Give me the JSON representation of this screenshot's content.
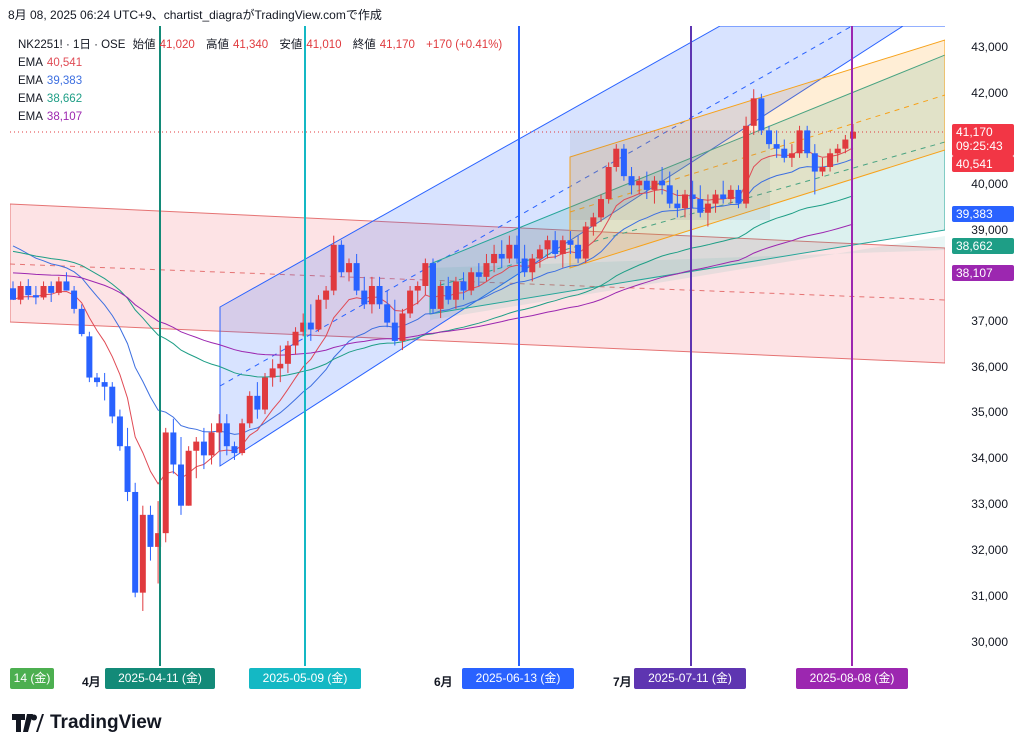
{
  "header": {
    "caption": "8月 08, 2025 06:24 UTC+9、chartist_diagraがTradingView.comで作成",
    "symbol": "NK2251! · 1日 · OSE",
    "open_label": "始値",
    "open_value": "41,020",
    "high_label": "高値",
    "high_value": "41,340",
    "low_label": "安値",
    "low_value": "41,010",
    "close_label": "終値",
    "close_value": "41,170",
    "change": "+170 (+0.41%)"
  },
  "legend": [
    {
      "label": "EMA",
      "value": "40,541",
      "color": "#e04b55"
    },
    {
      "label": "EMA",
      "value": "39,383",
      "color": "#3d6fe0"
    },
    {
      "label": "EMA",
      "value": "38,662",
      "color": "#1e9e86"
    },
    {
      "label": "EMA",
      "value": "38,107",
      "color": "#9c27b0"
    }
  ],
  "price_tags": {
    "last_price": "41,170",
    "countdown": "09:25:43",
    "ema1": "40,541",
    "ema2": "39,383",
    "ema3": "38,662",
    "ema4": "38,107"
  },
  "axis": {
    "y_ticks": [
      "43,000",
      "42,000",
      "40,000",
      "39,000",
      "37,000",
      "36,000",
      "35,000",
      "34,000",
      "33,000",
      "32,000",
      "31,000",
      "30,000"
    ],
    "month_labels": [
      "4月",
      "6月",
      "7月"
    ],
    "date_tags": [
      {
        "label": "14 (金)",
        "color": "#4caf50"
      },
      {
        "label": "2025-04-11 (金)",
        "color": "#138a78"
      },
      {
        "label": "2025-05-09 (金)",
        "color": "#14b8c4"
      },
      {
        "label": "2025-06-13 (金)",
        "color": "#2962ff"
      },
      {
        "label": "2025-07-11 (金)",
        "color": "#5e35b1"
      },
      {
        "label": "2025-08-08 (金)",
        "color": "#9c27b0"
      }
    ]
  },
  "footer": {
    "brand": "TradingView"
  },
  "chart_data": {
    "type": "candlestick",
    "symbol": "NK2251!",
    "interval": "1日",
    "exchange": "OSE",
    "ylim": [
      29300,
      43300
    ],
    "grid": false,
    "up_color": "#e03a3e",
    "down_color": "#2962ff",
    "candles": [
      [
        37750,
        37900,
        37500,
        37500
      ],
      [
        37500,
        37900,
        37400,
        37800
      ],
      [
        37800,
        37950,
        37500,
        37600
      ],
      [
        37600,
        37800,
        37400,
        37550
      ],
      [
        37550,
        37900,
        37500,
        37800
      ],
      [
        37800,
        37900,
        37450,
        37650
      ],
      [
        37650,
        38000,
        37600,
        37900
      ],
      [
        37900,
        38100,
        37700,
        37700
      ],
      [
        37700,
        37800,
        37200,
        37300
      ],
      [
        37300,
        37400,
        36700,
        36750
      ],
      [
        36700,
        36800,
        35700,
        35800
      ],
      [
        35800,
        35900,
        35600,
        35700
      ],
      [
        35700,
        35900,
        35300,
        35600
      ],
      [
        35600,
        35700,
        34800,
        34950
      ],
      [
        34950,
        35100,
        34200,
        34300
      ],
      [
        34300,
        34700,
        33100,
        33300
      ],
      [
        33300,
        33500,
        31000,
        31100
      ],
      [
        31100,
        33000,
        30700,
        32800
      ],
      [
        32800,
        33000,
        31800,
        32100
      ],
      [
        32100,
        33100,
        31300,
        32400
      ],
      [
        32400,
        34700,
        32200,
        34600
      ],
      [
        34600,
        34900,
        33700,
        33900
      ],
      [
        33900,
        34500,
        32800,
        33000
      ],
      [
        33000,
        34300,
        33000,
        34200
      ],
      [
        34200,
        34500,
        33600,
        34400
      ],
      [
        34400,
        34700,
        33800,
        34100
      ],
      [
        34100,
        34800,
        33900,
        34600
      ],
      [
        34600,
        35000,
        34200,
        34800
      ],
      [
        34800,
        35000,
        34100,
        34300
      ],
      [
        34300,
        34400,
        34000,
        34150
      ],
      [
        34150,
        34900,
        34100,
        34800
      ],
      [
        34800,
        35500,
        34700,
        35400
      ],
      [
        35400,
        35700,
        34900,
        35100
      ],
      [
        35100,
        35900,
        35000,
        35800
      ],
      [
        35800,
        36200,
        35600,
        36000
      ],
      [
        36000,
        36500,
        35700,
        36100
      ],
      [
        36100,
        36600,
        35900,
        36500
      ],
      [
        36500,
        36900,
        36300,
        36800
      ],
      [
        36800,
        37200,
        36700,
        37000
      ],
      [
        37000,
        37400,
        36600,
        36850
      ],
      [
        36850,
        37600,
        36800,
        37500
      ],
      [
        37500,
        37800,
        37300,
        37700
      ],
      [
        37700,
        38900,
        37600,
        38700
      ],
      [
        38700,
        38800,
        38000,
        38100
      ],
      [
        38100,
        38400,
        37900,
        38300
      ],
      [
        38300,
        38500,
        37600,
        37700
      ],
      [
        37700,
        38000,
        37300,
        37400
      ],
      [
        37400,
        38000,
        37200,
        37800
      ],
      [
        37800,
        38000,
        37300,
        37400
      ],
      [
        37400,
        37700,
        36900,
        37000
      ],
      [
        37000,
        37500,
        36500,
        36600
      ],
      [
        36600,
        37300,
        36400,
        37200
      ],
      [
        37200,
        37800,
        37100,
        37700
      ],
      [
        37700,
        37900,
        37400,
        37800
      ],
      [
        37800,
        38400,
        37600,
        38300
      ],
      [
        38300,
        38400,
        37200,
        37300
      ],
      [
        37300,
        37900,
        37100,
        37800
      ],
      [
        37800,
        38000,
        37400,
        37500
      ],
      [
        37500,
        38000,
        37300,
        37900
      ],
      [
        37900,
        38100,
        37500,
        37700
      ],
      [
        37700,
        38200,
        37600,
        38100
      ],
      [
        38100,
        38300,
        37800,
        38000
      ],
      [
        38000,
        38500,
        37900,
        38300
      ],
      [
        38300,
        38700,
        38100,
        38500
      ],
      [
        38500,
        38800,
        38200,
        38400
      ],
      [
        38400,
        38900,
        38300,
        38700
      ],
      [
        38700,
        38900,
        38300,
        38400
      ],
      [
        38400,
        38700,
        38000,
        38100
      ],
      [
        38100,
        38500,
        37900,
        38400
      ],
      [
        38400,
        38700,
        38200,
        38600
      ],
      [
        38600,
        38900,
        38400,
        38800
      ],
      [
        38800,
        39000,
        38400,
        38500
      ],
      [
        38500,
        38900,
        38200,
        38800
      ],
      [
        38800,
        39000,
        38500,
        38700
      ],
      [
        38700,
        38900,
        38300,
        38400
      ],
      [
        38400,
        39200,
        38300,
        39100
      ],
      [
        39100,
        39400,
        38900,
        39300
      ],
      [
        39300,
        39800,
        39200,
        39700
      ],
      [
        39700,
        40500,
        39600,
        40400
      ],
      [
        40400,
        40900,
        40300,
        40800
      ],
      [
        40800,
        40900,
        40100,
        40200
      ],
      [
        40200,
        40400,
        39800,
        40000
      ],
      [
        40000,
        40200,
        39800,
        40100
      ],
      [
        40100,
        40300,
        39700,
        39900
      ],
      [
        39900,
        40200,
        39600,
        40100
      ],
      [
        40100,
        40400,
        39800,
        40000
      ],
      [
        40000,
        40300,
        39500,
        39600
      ],
      [
        39600,
        39900,
        39300,
        39500
      ],
      [
        39500,
        39900,
        39300,
        39800
      ],
      [
        39800,
        40100,
        39500,
        39700
      ],
      [
        39700,
        40000,
        39300,
        39400
      ],
      [
        39400,
        39800,
        39100,
        39600
      ],
      [
        39600,
        39900,
        39400,
        39800
      ],
      [
        39800,
        40100,
        39600,
        39700
      ],
      [
        39700,
        40000,
        39600,
        39900
      ],
      [
        39900,
        40000,
        39500,
        39600
      ],
      [
        39600,
        41500,
        39500,
        41300
      ],
      [
        41300,
        42100,
        41100,
        41900
      ],
      [
        41900,
        42000,
        41100,
        41200
      ],
      [
        41200,
        41300,
        40800,
        40900
      ],
      [
        40900,
        41200,
        40600,
        40800
      ],
      [
        40800,
        41000,
        40500,
        40600
      ],
      [
        40600,
        40900,
        40400,
        40700
      ],
      [
        40700,
        41300,
        40600,
        41200
      ],
      [
        41200,
        41300,
        40600,
        40700
      ],
      [
        40700,
        40900,
        39800,
        40300
      ],
      [
        40300,
        40600,
        40200,
        40400
      ],
      [
        40400,
        40800,
        40300,
        40700
      ],
      [
        40700,
        40900,
        40500,
        40800
      ],
      [
        40800,
        41100,
        40700,
        41000
      ],
      [
        41020,
        41340,
        41010,
        41170
      ]
    ],
    "ema_last": [
      40541,
      39383,
      38662,
      38107
    ],
    "last_close": 41170
  }
}
